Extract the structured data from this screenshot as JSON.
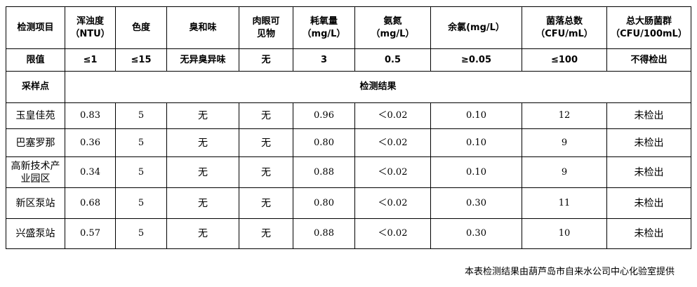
{
  "headers": [
    "检测项目",
    "浑浊度\n（NTU）",
    "色度",
    "臭和味",
    "肉眼可\n见物",
    "耗氧量\n（mg/L）",
    "氨氮\n（mg/L）",
    "余氯(mg/L）",
    "菌落总数\n（CFU/mL）",
    "总大肠菌群\n（CFU/100mL）"
  ],
  "limits": [
    "限值",
    "≤1",
    "≤15",
    "无异臭异味",
    "无",
    "3",
    "0.5",
    "≥0.05",
    "≤100",
    "不得检出"
  ],
  "sampling_label": "采样点",
  "results_label": "检测结果",
  "rows": [
    [
      "玉皇佳苑",
      "0.83",
      "5",
      "无",
      "无",
      "0.96",
      "＜0.02",
      "0.10",
      "12",
      "未检出"
    ],
    [
      "巴塞罗那",
      "0.36",
      "5",
      "无",
      "无",
      "0.80",
      "＜0.02",
      "0.10",
      "9",
      "未检出"
    ],
    [
      "高新技术产业园区",
      "0.34",
      "5",
      "无",
      "无",
      "0.88",
      "＜0.02",
      "0.10",
      "9",
      "未检出"
    ],
    [
      "新区泵站",
      "0.68",
      "5",
      "无",
      "无",
      "0.80",
      "＜0.02",
      "0.30",
      "11",
      "未检出"
    ],
    [
      "兴盛泵站",
      "0.57",
      "5",
      "无",
      "无",
      "0.88",
      "＜0.02",
      "0.30",
      "10",
      "未检出"
    ]
  ],
  "footer": "本表检测结果由葫芦岛市自来水公司中心化验室提供"
}
